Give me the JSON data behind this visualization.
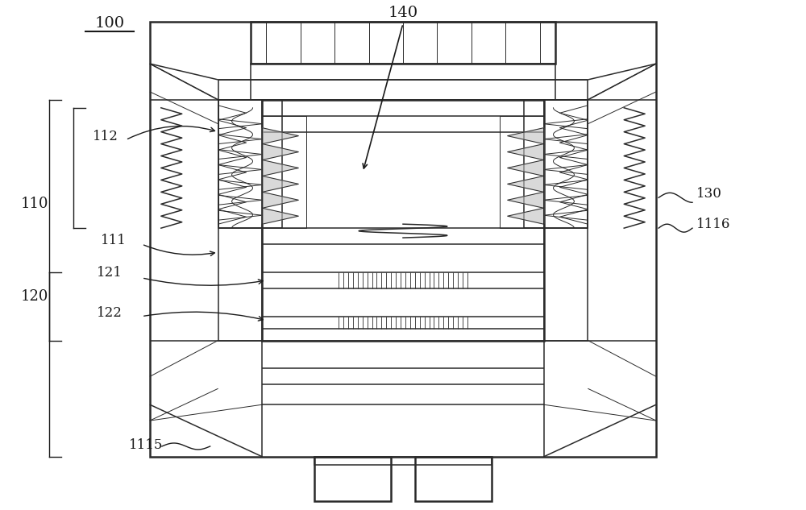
{
  "bg_color": "#ffffff",
  "line_color": "#2a2a2a",
  "figsize": [
    10.0,
    6.33
  ],
  "dpi": 100,
  "lw_thin": 0.7,
  "lw_main": 1.1,
  "lw_thick": 1.8
}
